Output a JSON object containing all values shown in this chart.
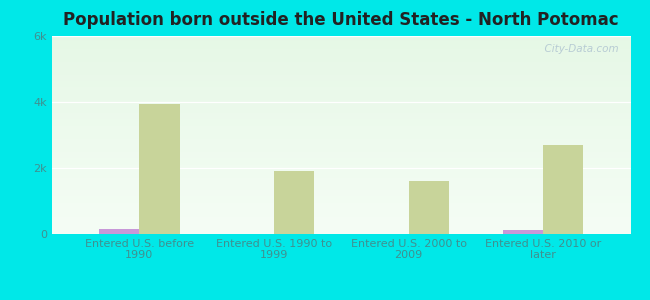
{
  "title": "Population born outside the United States - North Potomac",
  "categories": [
    "Entered U.S. before\n1990",
    "Entered U.S. 1990 to\n1999",
    "Entered U.S. 2000 to\n2009",
    "Entered U.S. 2010 or\nlater"
  ],
  "native_values": [
    150,
    8,
    8,
    110
  ],
  "foreign_values": [
    3950,
    1900,
    1600,
    2700
  ],
  "native_color": "#c898d8",
  "foreign_color": "#c8d49a",
  "background_color": "#00e8e8",
  "ylim": [
    0,
    6000
  ],
  "yticks": [
    0,
    2000,
    4000,
    6000
  ],
  "ytick_labels": [
    "0",
    "2k",
    "4k",
    "6k"
  ],
  "bar_width": 0.3,
  "title_fontsize": 12,
  "tick_fontsize": 8,
  "legend_fontsize": 9.5,
  "watermark_text": "  City-Data.com",
  "watermark_color": "#b8ccd4",
  "tick_color": "#409090",
  "title_color": "#222222"
}
